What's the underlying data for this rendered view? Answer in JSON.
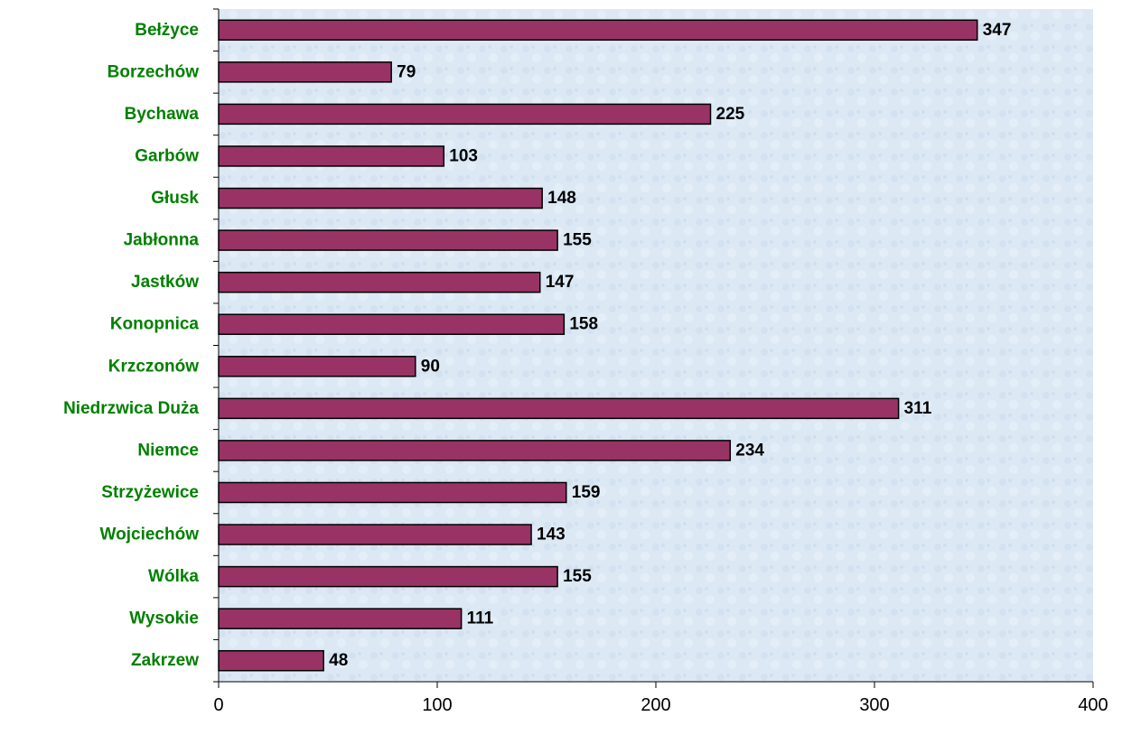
{
  "chart_data": {
    "type": "bar",
    "orientation": "horizontal",
    "categories": [
      "Bełżyce",
      "Borzechów",
      "Bychawa",
      "Garbów",
      "Głusk",
      "Jabłonna",
      "Jastków",
      "Konopnica",
      "Krzczonów",
      "Niedrzwica Duża",
      "Niemce",
      "Strzyżewice",
      "Wojciechów",
      "Wólka",
      "Wysokie",
      "Zakrzew"
    ],
    "values": [
      347,
      79,
      225,
      103,
      148,
      155,
      147,
      158,
      90,
      311,
      234,
      159,
      143,
      155,
      111,
      48
    ],
    "data_labels": [
      "347",
      "79",
      "225",
      "103",
      "148",
      "155",
      "147",
      "158",
      "90",
      "311",
      "234",
      "159",
      "143",
      "155",
      "111",
      "48"
    ],
    "xlim": [
      0,
      400
    ],
    "x_ticks": [
      "0",
      "100",
      "200",
      "300",
      "400"
    ],
    "grid": false,
    "legend": "none",
    "colors": {
      "bar_fill": "#993366",
      "bar_stroke": "#000000",
      "category_label": "#008000",
      "data_label": "#000000",
      "plot_background": "#dce9f5",
      "axis": "#000000"
    }
  }
}
